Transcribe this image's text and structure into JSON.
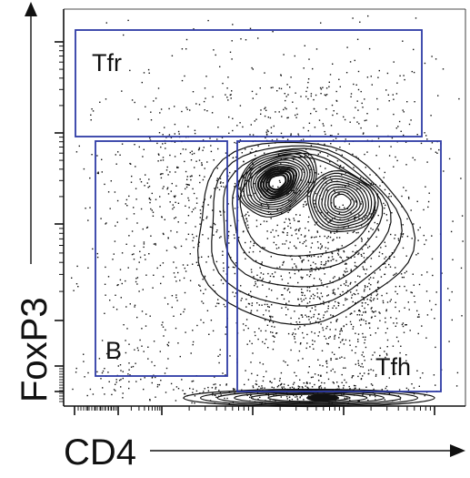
{
  "chart_data": {
    "type": "scatter",
    "subtype": "flow cytometry contour plot with outlier dots",
    "xlabel": "CD4",
    "ylabel": "FoxP3",
    "x_axis_scale": "log",
    "y_axis_scale": "log",
    "x_tick_labels": [],
    "y_tick_labels": [],
    "grid": false,
    "legend": "none",
    "gates": [
      {
        "name": "Tfr",
        "label": "Tfr"
      },
      {
        "name": "B",
        "label": "B"
      },
      {
        "name": "Tfh",
        "label": "Tfh"
      }
    ],
    "populations": [
      {
        "name": "major-peak-left",
        "relative_density": "highest"
      },
      {
        "name": "major-peak-right",
        "relative_density": "high"
      },
      {
        "name": "baseline-cluster",
        "relative_density": "high"
      }
    ]
  },
  "colors": {
    "gate": "#2e3aa6",
    "axis": "#111111",
    "contour": "#111111",
    "dots": "#111111",
    "background": "#ffffff"
  }
}
